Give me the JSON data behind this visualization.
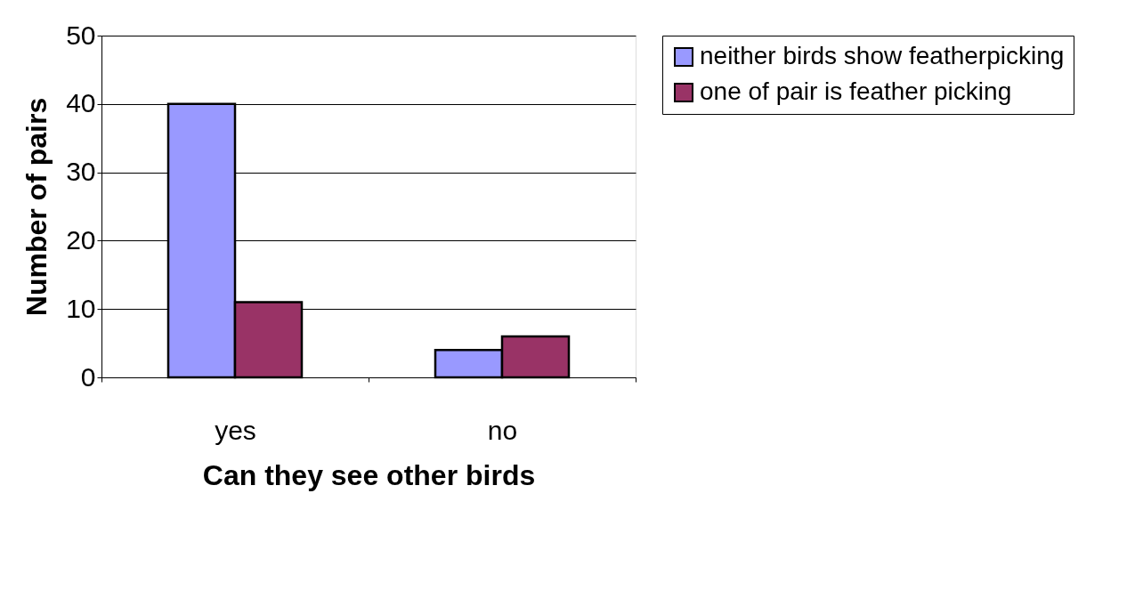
{
  "chart_data": {
    "type": "bar",
    "xlabel": "Can they see other birds",
    "ylabel": "Number of pairs",
    "categories": [
      "yes",
      "no"
    ],
    "series": [
      {
        "name": "neither birds show featherpicking",
        "color": "#9999ff",
        "values": [
          40,
          4
        ]
      },
      {
        "name": "one of pair is feather picking",
        "color": "#993366",
        "values": [
          11,
          6
        ]
      }
    ],
    "ylim": [
      0,
      50
    ],
    "yticks": [
      0,
      10,
      20,
      30,
      40,
      50
    ],
    "grid": "y",
    "legend": "right"
  }
}
